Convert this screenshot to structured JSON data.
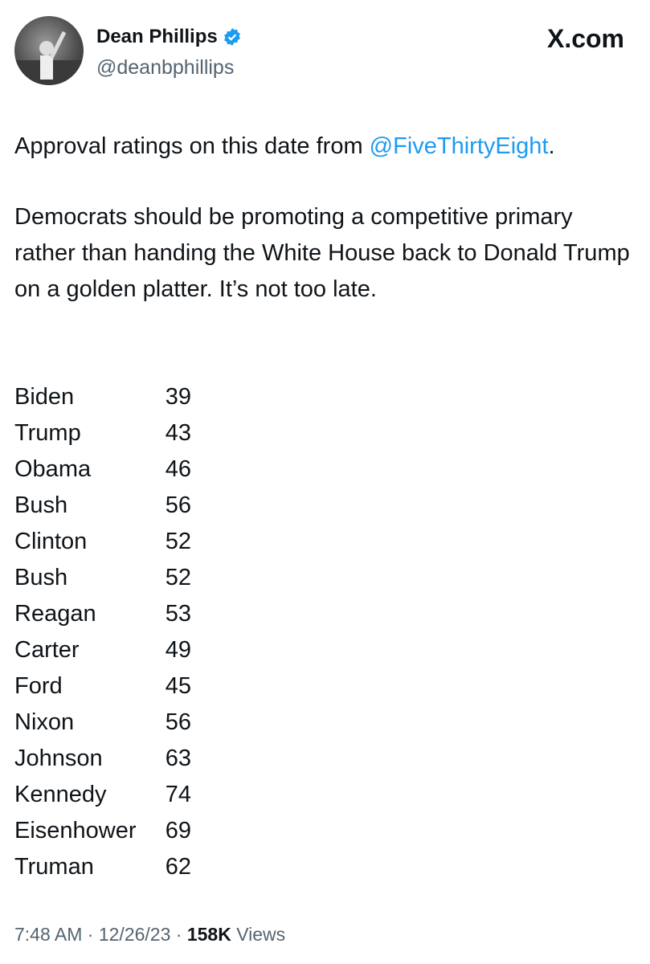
{
  "header": {
    "name": "Dean Phillips",
    "handle": "@deanbphillips",
    "site": "X.com"
  },
  "body": {
    "intro": {
      "text": "Approval ratings on this date from ",
      "mention": "@FiveThirtyEight",
      "end": "."
    },
    "paragraph": "Democrats should be promoting a competitive primary rather than handing the White House back to Donald Trump on a golden platter. It’s not too late.",
    "ratings": [
      {
        "name": "Biden",
        "value": 39
      },
      {
        "name": "Trump",
        "value": 43
      },
      {
        "name": "Obama",
        "value": 46
      },
      {
        "name": "Bush",
        "value": 56
      },
      {
        "name": "Clinton",
        "value": 52
      },
      {
        "name": "Bush",
        "value": 52
      },
      {
        "name": "Reagan",
        "value": 53
      },
      {
        "name": "Carter",
        "value": 49
      },
      {
        "name": "Ford",
        "value": 45
      },
      {
        "name": "Nixon",
        "value": 56
      },
      {
        "name": "Johnson",
        "value": 63
      },
      {
        "name": "Kennedy",
        "value": 74
      },
      {
        "name": "Eisenhower",
        "value": 69
      },
      {
        "name": "Truman",
        "value": 62
      }
    ]
  },
  "footer": {
    "time": "7:48 AM",
    "separator": "·",
    "date": "12/26/23",
    "views_count": "158K",
    "views_label": "Views"
  }
}
